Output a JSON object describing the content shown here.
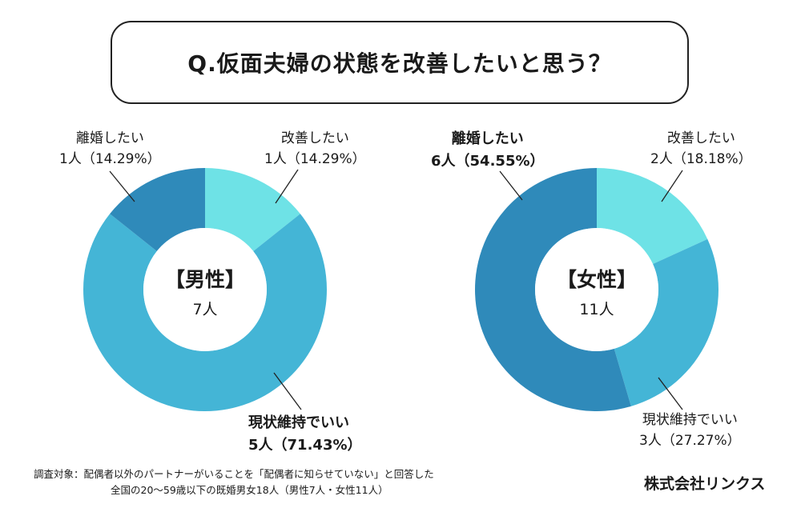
{
  "title": "Q.仮面夫婦の状態を改善したいと思う？",
  "colors": {
    "kaizen": "#6ee2e6",
    "genjo": "#44b5d6",
    "rikon": "#2f8aba"
  },
  "chart_data": [
    {
      "type": "pie",
      "variant": "donut",
      "id": "male",
      "center_label": "【男性】",
      "total_label": "7人",
      "slices": [
        {
          "key": "kaizen",
          "label": "改善したい",
          "count_label": "1人",
          "pct_label": "14.29%",
          "value": 14.29
        },
        {
          "key": "genjo",
          "label": "現状維持でいい",
          "count_label": "5人",
          "pct_label": "71.43%",
          "value": 71.43
        },
        {
          "key": "rikon",
          "label": "離婚したい",
          "count_label": "1人",
          "pct_label": "14.29%",
          "value": 14.29
        }
      ]
    },
    {
      "type": "pie",
      "variant": "donut",
      "id": "female",
      "center_label": "【女性】",
      "total_label": "11人",
      "slices": [
        {
          "key": "kaizen",
          "label": "改善したい",
          "count_label": "2人",
          "pct_label": "18.18%",
          "value": 18.18
        },
        {
          "key": "genjo",
          "label": "現状維持でいい",
          "count_label": "3人",
          "pct_label": "27.27%",
          "value": 27.27
        },
        {
          "key": "rikon",
          "label": "離婚したい",
          "count_label": "6人",
          "pct_label": "54.55%",
          "value": 54.55
        }
      ]
    }
  ],
  "footnote": {
    "line1": "調査対象：配偶者以外のパートナーがいることを「配偶者に知らせていない」と回答した",
    "line2": "全国の20〜59歳以下の既婚男女18人（男性7人・女性11人）"
  },
  "company": "株式会社リンクス"
}
